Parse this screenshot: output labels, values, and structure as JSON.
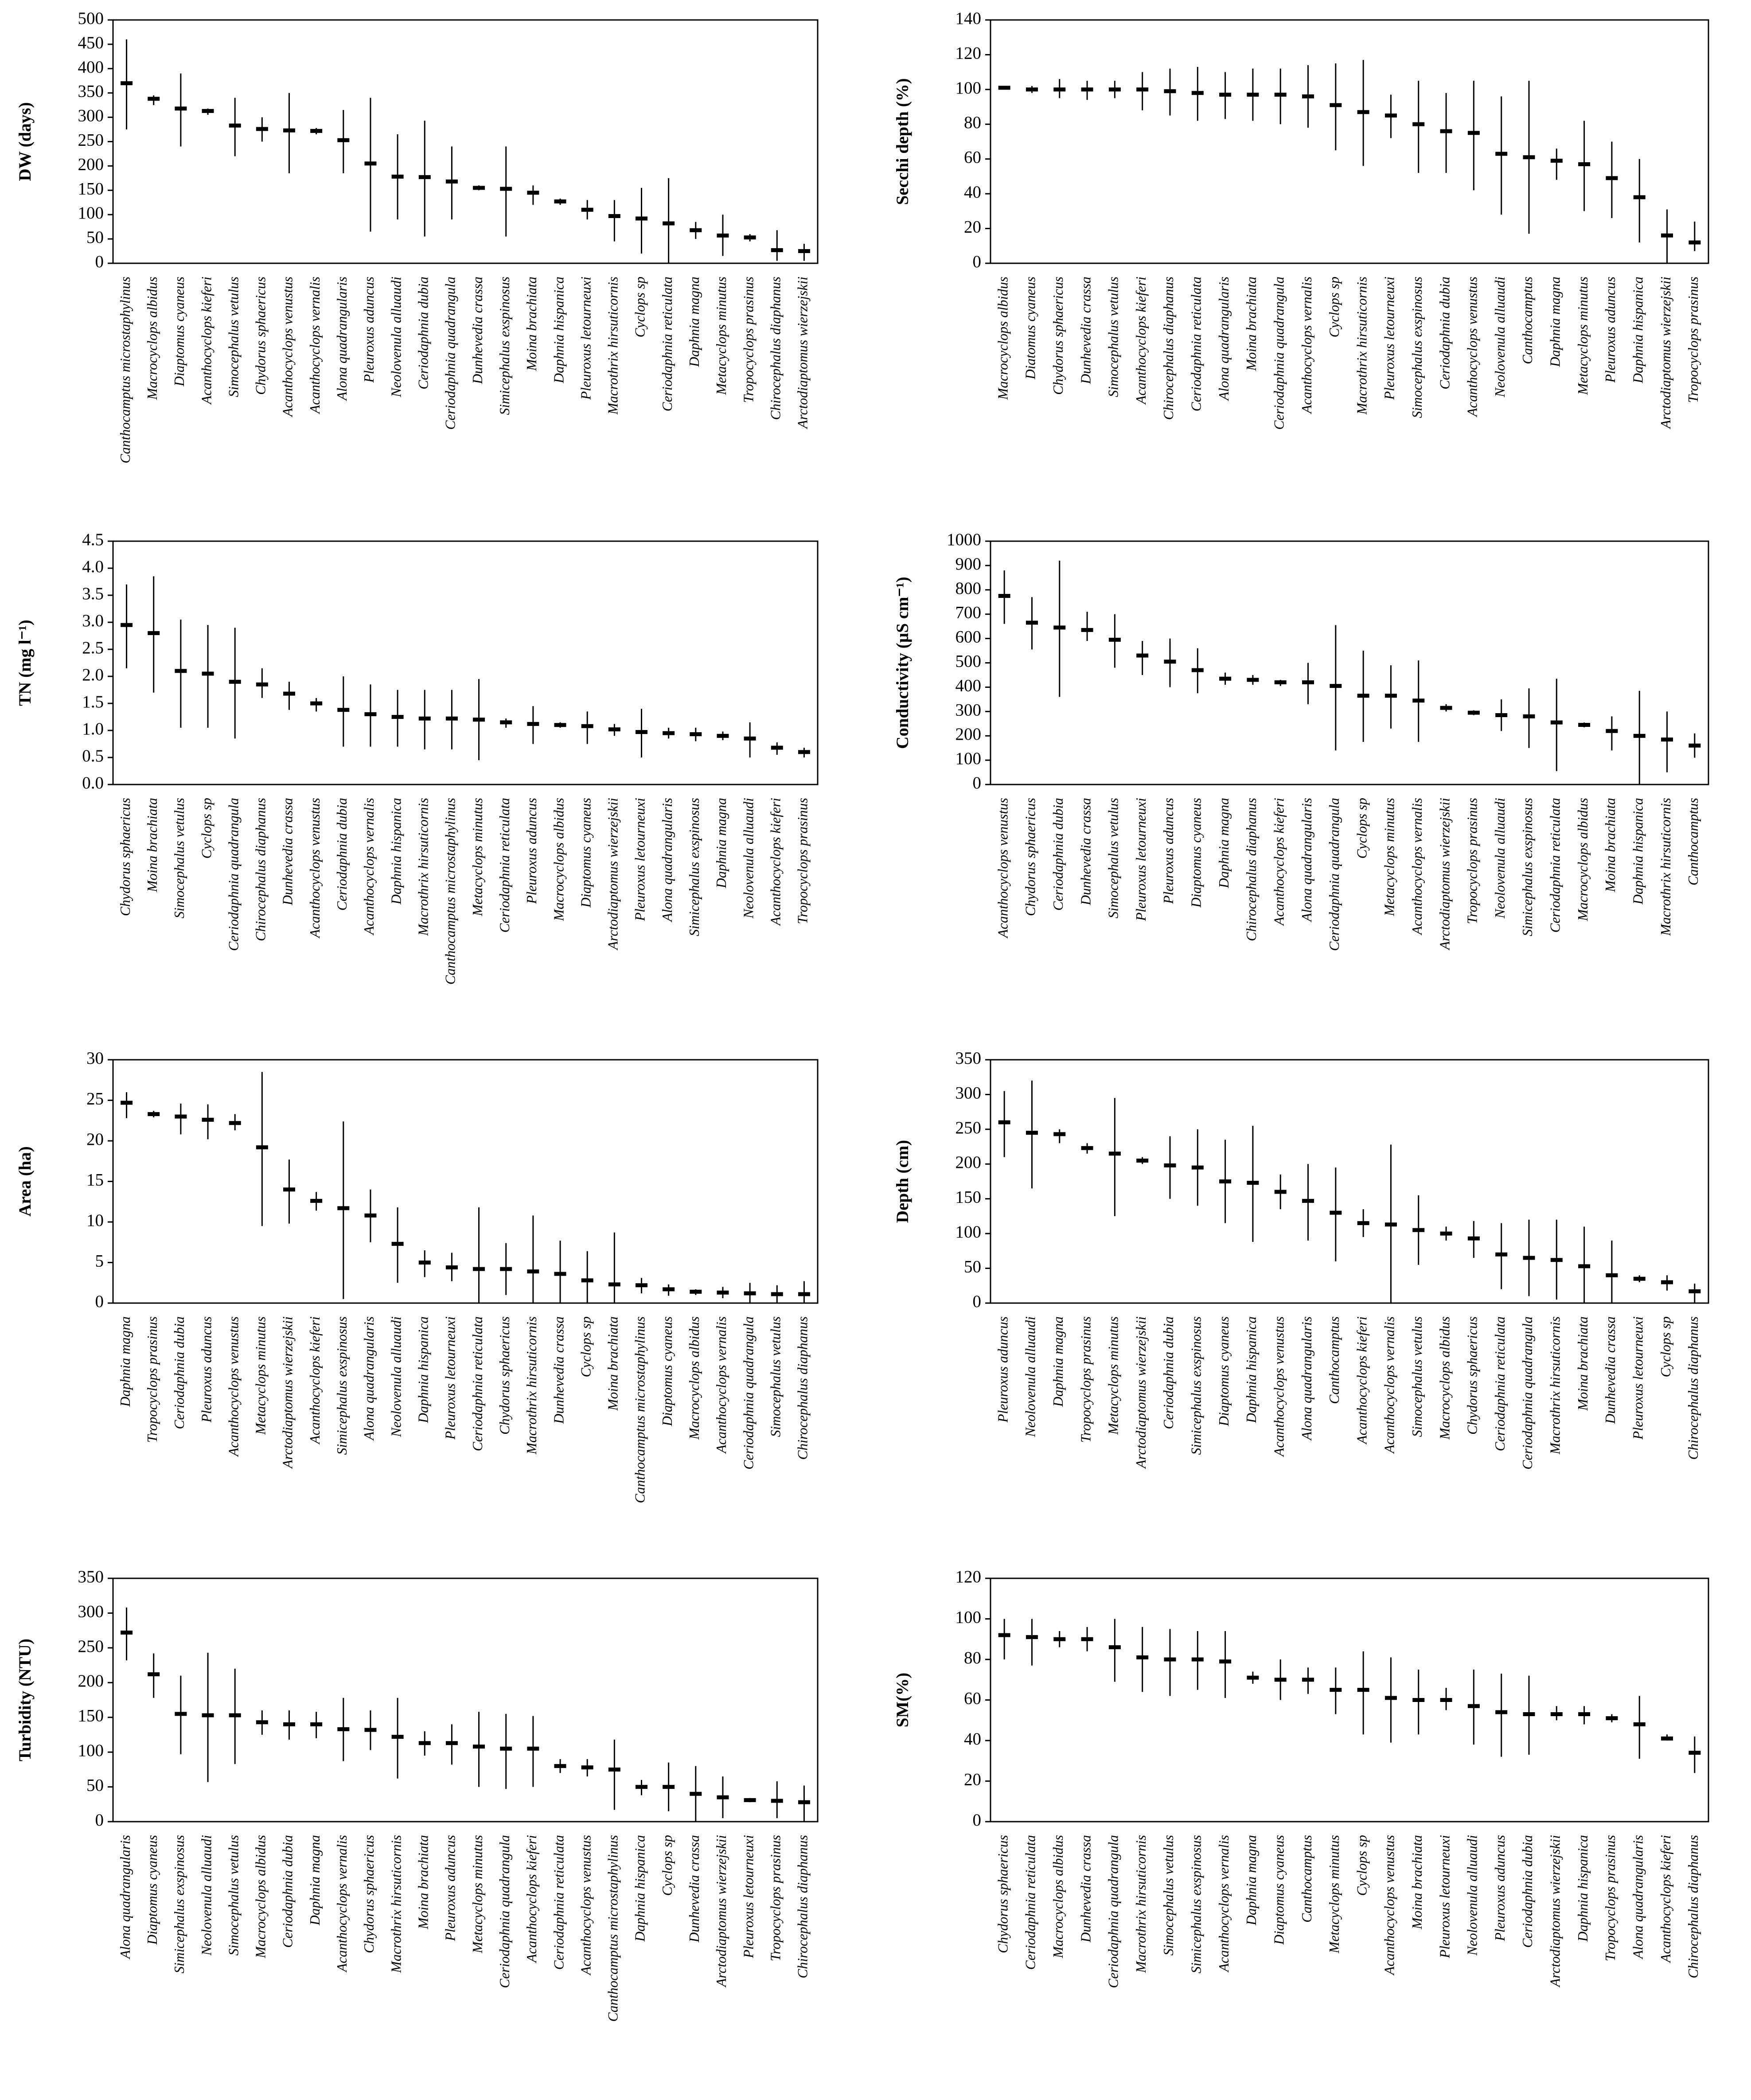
{
  "chart_data": [
    {
      "type": "errorbar",
      "ylabel": "DW (days)",
      "color": "#000000",
      "ylim": [
        0,
        500
      ],
      "yticks": [
        0,
        50,
        100,
        150,
        200,
        250,
        300,
        350,
        400,
        450,
        500
      ],
      "categories": [
        "Canthocamptus microstaphylinus",
        "Macrocyclops albidus",
        "Diaptomus cyaneus",
        "Acanthocyclops kieferi",
        "Simocephalus vetulus",
        "Chydorus sphaericus",
        "Acanthocyclops venustus",
        "Acanthocyclops vernalis",
        "Alona quadrangularis",
        "Pleuroxus aduncus",
        "Neolovenula alluaudi",
        "Ceriodaphnia dubia",
        "Ceriodaphnia quadrangula",
        "Dunhevedia crassa",
        "Simicephalus exspinosus",
        "Moina brachiata",
        "Daphnia hispanica",
        "Pleuroxus letourneuxi",
        "Macrothrix hirsuticornis",
        "Cyclops sp",
        "Ceriodaphnia reticulata",
        "Daphnia magna",
        "Metacyclops minutus",
        "Tropocyclops prasinus",
        "Chirocephalus diaphanus",
        "Arctodiaptomus wierzejskii"
      ],
      "values": [
        370,
        338,
        318,
        313,
        283,
        276,
        273,
        272,
        253,
        205,
        178,
        177,
        168,
        155,
        153,
        145,
        127,
        110,
        97,
        92,
        82,
        68,
        57,
        53,
        27,
        25
      ],
      "low": [
        275,
        325,
        240,
        305,
        220,
        250,
        185,
        265,
        185,
        65,
        90,
        55,
        90,
        150,
        55,
        120,
        120,
        90,
        45,
        20,
        0,
        50,
        15,
        45,
        5,
        5
      ],
      "high": [
        460,
        345,
        390,
        318,
        340,
        300,
        350,
        278,
        315,
        340,
        265,
        293,
        240,
        160,
        240,
        160,
        133,
        130,
        130,
        155,
        175,
        85,
        100,
        60,
        68,
        40
      ]
    },
    {
      "type": "errorbar",
      "ylabel": "Secchi depth (%)",
      "color": "#000000",
      "ylim": [
        0,
        140
      ],
      "yticks": [
        0,
        20,
        40,
        60,
        80,
        100,
        120,
        140
      ],
      "categories": [
        "Macrocyclops albidus",
        "Diatomus cyaneus",
        "Chydorus sphaericus",
        "Dunhevedia crassa",
        "Simocephalus vetulus",
        "Acanthocyclops kieferi",
        "Chirocephalus diaphanus",
        "Ceriodaphnia reticulata",
        "Alona quadrangularis",
        "Moina brachiata",
        "Ceriodaphnia quadrangula",
        "Acanthocyclops vernalis",
        "Cyclops sp",
        "Macrothrix hirsuticornis",
        "Pleuroxus letourneuxi",
        "Simocephalus exspinosus",
        "Ceriodaphnia dubia",
        "Acanthocyclops venustus",
        "Neolovenula alluaudi",
        "Canthocamptus",
        "Daphnia magna",
        "Metacyclops minutus",
        "Pleuroxus aduncus",
        "Daphnia hispanica",
        "Arctodiaptomus wierzejskii",
        "Tropocyclops prasinus"
      ],
      "values": [
        101,
        100,
        100,
        100,
        100,
        100,
        99,
        98,
        97,
        97,
        97,
        96,
        91,
        87,
        85,
        80,
        76,
        75,
        63,
        61,
        59,
        57,
        49,
        38,
        16,
        12
      ],
      "low": [
        100,
        98,
        95,
        94,
        95,
        88,
        85,
        82,
        83,
        82,
        80,
        78,
        65,
        56,
        72,
        52,
        52,
        42,
        28,
        17,
        48,
        30,
        26,
        12,
        0,
        7
      ],
      "high": [
        102,
        102,
        106,
        105,
        105,
        110,
        112,
        113,
        110,
        112,
        112,
        114,
        115,
        117,
        97,
        105,
        98,
        105,
        96,
        105,
        66,
        82,
        70,
        60,
        31,
        24
      ]
    },
    {
      "type": "errorbar",
      "ylabel": "TN (mg l⁻¹)",
      "color": "#000000",
      "ylim": [
        0,
        4.5
      ],
      "yticks": [
        {
          "value": 0,
          "label": "0.0"
        },
        0.5,
        {
          "value": 1,
          "label": "1.0"
        },
        1.5,
        {
          "value": 2,
          "label": "2.0"
        },
        2.5,
        {
          "value": 3,
          "label": "3.0"
        },
        3.5,
        {
          "value": 4,
          "label": "4.0"
        },
        4.5
      ],
      "categories": [
        "Chydorus sphaericus",
        "Moina brachiata",
        "Simocephalus vetulus",
        "Cyclops sp",
        "Ceriodaphnia quadrangula",
        "Chirocephalus diaphanus",
        "Dunhevedia crassa",
        "Acanthocyclops venustus",
        "Ceriodaphnia dubia",
        "Acanthocyclops vernalis",
        "Daphnia hispanica",
        "Macrothrix hirsuticornis",
        "Canthocamptus microstaphylinus",
        "Metacyclops minutus",
        "Ceriodaphnia reticulata",
        "Pleuroxus aduncus",
        "Macrocyclops albidus",
        "Diaptomus cyaneus",
        "Arctodiaptomus wierzejskii",
        "Pleuroxus letourneuxi",
        "Alona quadrangularis",
        "Simicephalus exspinosus",
        "Daphnia magna",
        "Neolovenula alluaudi",
        "Acanthocyclops kieferi",
        "Tropocyclops prasinus"
      ],
      "values": [
        2.95,
        2.8,
        2.1,
        2.05,
        1.9,
        1.85,
        1.68,
        1.5,
        1.38,
        1.3,
        1.25,
        1.22,
        1.22,
        1.2,
        1.15,
        1.12,
        1.1,
        1.08,
        1.02,
        0.97,
        0.95,
        0.93,
        0.9,
        0.85,
        0.68,
        0.6
      ],
      "low": [
        2.15,
        1.7,
        1.05,
        1.05,
        0.85,
        1.6,
        1.38,
        1.35,
        0.7,
        0.7,
        0.7,
        0.65,
        0.65,
        0.45,
        1.05,
        0.75,
        1.05,
        0.75,
        0.9,
        0.5,
        0.85,
        0.8,
        0.82,
        0.5,
        0.55,
        0.5
      ],
      "high": [
        3.7,
        3.85,
        3.05,
        2.95,
        2.9,
        2.15,
        1.9,
        1.6,
        2,
        1.85,
        1.75,
        1.75,
        1.75,
        1.95,
        1.22,
        1.45,
        1.15,
        1.35,
        1.12,
        1.4,
        1.05,
        1.05,
        0.98,
        1.15,
        0.78,
        0.68
      ]
    },
    {
      "type": "errorbar",
      "ylabel": "Conductivity (µS cm⁻¹)",
      "color": "#000000",
      "ylim": [
        0,
        1000
      ],
      "yticks": [
        0,
        100,
        200,
        300,
        400,
        500,
        600,
        700,
        800,
        900,
        1000
      ],
      "categories": [
        "Acanthocyclops venustus",
        "Chydorus sphaericus",
        "Ceriodaphnia dubia",
        "Dunhevedia crassa",
        "Simocephalus vetulus",
        "Pleuroxus letourneuxi",
        "Pleuroxus aduncus",
        "Diaptomus cyaneus",
        "Daphnia magna",
        "Chirocephalus diaphanus",
        "Acanthocyclops kieferi",
        "Alona quadrangularis",
        "Ceriodaphnia quadrangula",
        "Cyclops sp",
        "Metacyclops minutus",
        "Acanthocyclops vernalis",
        "Arctodiaptomus wierzejskii",
        "Tropocyclops prasinus",
        "Neolovenula alluaudi",
        "Simicephalus exspinosus",
        "Ceriodaphnia reticulata",
        "Macrocyclops albidus",
        "Moina brachiata",
        "Daphnia hispanica",
        "Macrothrix hirsuticornis",
        "Canthocamptus"
      ],
      "values": [
        775,
        665,
        645,
        635,
        595,
        530,
        505,
        470,
        435,
        430,
        420,
        420,
        405,
        365,
        365,
        345,
        315,
        295,
        285,
        280,
        255,
        245,
        220,
        200,
        185,
        160
      ],
      "low": [
        660,
        555,
        360,
        590,
        480,
        450,
        400,
        375,
        410,
        410,
        405,
        330,
        140,
        175,
        230,
        175,
        300,
        285,
        220,
        150,
        55,
        235,
        140,
        0,
        50,
        110
      ],
      "high": [
        880,
        770,
        920,
        710,
        700,
        590,
        600,
        560,
        460,
        450,
        430,
        500,
        655,
        550,
        490,
        510,
        330,
        305,
        350,
        395,
        435,
        255,
        280,
        385,
        300,
        210
      ]
    },
    {
      "type": "errorbar",
      "ylabel": "Area (ha)",
      "color": "#000000",
      "ylim": [
        0,
        30
      ],
      "yticks": [
        0,
        5,
        10,
        15,
        20,
        25,
        30
      ],
      "categories": [
        "Daphnia magna",
        "Tropocyclops prasinus",
        "Ceriodaphnia dubia",
        "Pleuroxus aduncus",
        "Acanthocyclops venustus",
        "Metacyclops minutus",
        "Arctodiaptomus wierzejskii",
        "Acanthocyclops kieferi",
        "Simicephalus exspinosus",
        "Alona quadrangularis",
        "Neolovenula alluaudi",
        "Daphnia hispanica",
        "Pleuroxus letourneuxi",
        "Ceriodaphnia reticulata",
        "Chydorus sphaericus",
        "Macrothrix hirsuticornis",
        "Dunhevedia crassa",
        "Cyclops sp",
        "Moina brachiata",
        "Canthocamptus microstaphylinus",
        "Diaptomus cyaneus",
        "Macrocyclops albidus",
        "Acanthocyclops vernalis",
        "Ceriodaphnia quadrangula",
        "Simocephalus vetulus",
        "Chirocephalus diaphanus"
      ],
      "values": [
        24.7,
        23.3,
        23,
        22.6,
        22.2,
        19.2,
        14,
        12.6,
        11.7,
        10.8,
        7.3,
        5,
        4.4,
        4.2,
        4.2,
        3.9,
        3.6,
        2.8,
        2.3,
        2.2,
        1.7,
        1.4,
        1.3,
        1.2,
        1.1,
        1.1
      ],
      "low": [
        22.8,
        22.9,
        20.8,
        20.2,
        21.3,
        9.5,
        9.8,
        11.4,
        0.5,
        7.5,
        2.5,
        3.2,
        2.7,
        0,
        1,
        0,
        0,
        0,
        0,
        1.2,
        0.9,
        1,
        0.6,
        0,
        0,
        0
      ],
      "high": [
        26,
        23.7,
        24.6,
        24.5,
        23.3,
        28.5,
        17.7,
        13.7,
        22.4,
        14,
        11.8,
        6.5,
        6.2,
        11.8,
        7.4,
        10.8,
        7.7,
        6.4,
        8.7,
        3.1,
        2.3,
        1.7,
        2,
        2.5,
        2.2,
        2.7
      ]
    },
    {
      "type": "errorbar",
      "ylabel": "Depth (cm)",
      "color": "#000000",
      "ylim": [
        0,
        350
      ],
      "yticks": [
        0,
        50,
        100,
        150,
        200,
        250,
        300,
        350
      ],
      "categories": [
        "Pleuroxus aduncus",
        "Neolovenula alluaudi",
        "Daphnia magna",
        "Tropocyclops prasinus",
        "Metacyclops minutus",
        "Arctodiaptomus wierzejskii",
        "Ceriodaphnia dubia",
        "Simicephalus exspinosus",
        "Diaptomus cyaneus",
        "Daphnia hispanica",
        "Acanthocyclops venustus",
        "Alona quadrangularis",
        "Canthocamptus",
        "Acanthocyclops kieferi",
        "Acanthocyclops vernalis",
        "Simocephalus vetulus",
        "Macrocyclops albidus",
        "Chydorus sphaericus",
        "Ceriodaphnia reticulata",
        "Ceriodaphnia quadrangula",
        "Macrothrix hirsuticornis",
        "Moina brachiata",
        "Dunhevedia crassa",
        "Pleuroxus letourneuxi",
        "Cyclops sp",
        "Chirocephalus diaphanus"
      ],
      "values": [
        260,
        245,
        243,
        223,
        215,
        205,
        198,
        195,
        175,
        173,
        160,
        147,
        130,
        115,
        113,
        105,
        100,
        93,
        70,
        65,
        62,
        53,
        40,
        35,
        30,
        17
      ],
      "low": [
        210,
        165,
        230,
        215,
        125,
        200,
        150,
        140,
        115,
        88,
        135,
        90,
        60,
        95,
        0,
        55,
        90,
        65,
        20,
        10,
        5,
        0,
        0,
        30,
        18,
        0
      ],
      "high": [
        305,
        320,
        250,
        230,
        295,
        210,
        240,
        250,
        235,
        255,
        185,
        200,
        195,
        135,
        228,
        155,
        110,
        118,
        115,
        120,
        120,
        110,
        90,
        40,
        40,
        28
      ]
    },
    {
      "type": "errorbar",
      "ylabel": "Turbidity (NTU)",
      "color": "#000000",
      "ylim": [
        0,
        350
      ],
      "yticks": [
        0,
        50,
        100,
        150,
        200,
        250,
        300,
        350
      ],
      "categories": [
        "Alona quadrangularis",
        "Diaptomus cyaneus",
        "Simicephalus exspinosus",
        "Neolovenula alluaudi",
        "Simocephalus vetulus",
        "Macrocyclops albidus",
        "Ceriodaphnia dubia",
        "Daphnia magna",
        "Acanthocyclops vernalis",
        "Chydorus sphaericus",
        "Macrothrix hirsuticornis",
        "Moina brachiata",
        "Pleuroxus aduncus",
        "Metacyclops minutus",
        "Ceriodaphnia quadrangula",
        "Acanthocyclops kieferi",
        "Ceriodaphnia reticulata",
        "Acanthocyclops venustus",
        "Canthocamptus microstaphylinus",
        "Daphnia hispanica",
        "Cyclops sp",
        "Dunhevedia crassa",
        "Arctodiaptomus wierzejskii",
        "Pleuroxus letourneuxi",
        "Tropocyclops prasinus",
        "Chirocephalus diaphanus"
      ],
      "values": [
        272,
        212,
        155,
        153,
        153,
        143,
        140,
        140,
        133,
        132,
        122,
        113,
        113,
        108,
        105,
        105,
        80,
        78,
        75,
        50,
        50,
        40,
        35,
        31,
        30,
        28
      ],
      "low": [
        232,
        178,
        97,
        57,
        83,
        125,
        118,
        120,
        87,
        103,
        62,
        95,
        82,
        50,
        47,
        50,
        70,
        65,
        17,
        38,
        15,
        0,
        5,
        28,
        5,
        0
      ],
      "high": [
        308,
        242,
        210,
        243,
        220,
        160,
        160,
        158,
        178,
        160,
        178,
        130,
        140,
        158,
        155,
        152,
        90,
        90,
        118,
        60,
        85,
        80,
        65,
        34,
        58,
        52
      ]
    },
    {
      "type": "errorbar",
      "ylabel": "SM(%)",
      "color": "#000000",
      "ylim": [
        0,
        120
      ],
      "yticks": [
        0,
        20,
        40,
        60,
        80,
        100,
        120
      ],
      "categories": [
        "Chydorus sphaericus",
        "Ceriodaphnia reticulata",
        "Macrocyclops albidus",
        "Dunhevedia crassa",
        "Ceriodaphnia quadrangula",
        "Macrothrix hirsuticornis",
        "Simocephalus vetulus",
        "Simicephalus exspinosus",
        "Acanthocyclops vernalis",
        "Daphnia magna",
        "Diaptomus cyaneus",
        "Canthocamptus",
        "Metacyclops minutus",
        "Cyclops sp",
        "Acanthocyclops venustus",
        "Moina brachiata",
        "Pleuroxus letourneuxi",
        "Neolovenula alluaudi",
        "Pleuroxus aduncus",
        "Ceriodaphnia dubia",
        "Arctodiaptomus wierzejskii",
        "Daphnia hispanica",
        "Tropocyclops prasinus",
        "Alona quadrangularis",
        "Acanthocyclops kieferi",
        "Chirocephalus diaphanus"
      ],
      "values": [
        92,
        91,
        90,
        90,
        86,
        81,
        80,
        80,
        79,
        71,
        70,
        70,
        65,
        65,
        61,
        60,
        60,
        57,
        54,
        53,
        53,
        53,
        51,
        48,
        41,
        34
      ],
      "low": [
        80,
        77,
        86,
        84,
        69,
        64,
        62,
        65,
        61,
        68,
        60,
        63,
        53,
        43,
        39,
        43,
        55,
        38,
        32,
        33,
        50,
        48,
        49,
        31,
        40,
        24
      ],
      "high": [
        100,
        100,
        94,
        96,
        100,
        96,
        95,
        94,
        94,
        74,
        80,
        76,
        76,
        84,
        81,
        75,
        66,
        75,
        73,
        72,
        57,
        57,
        53,
        62,
        43,
        42
      ]
    }
  ]
}
